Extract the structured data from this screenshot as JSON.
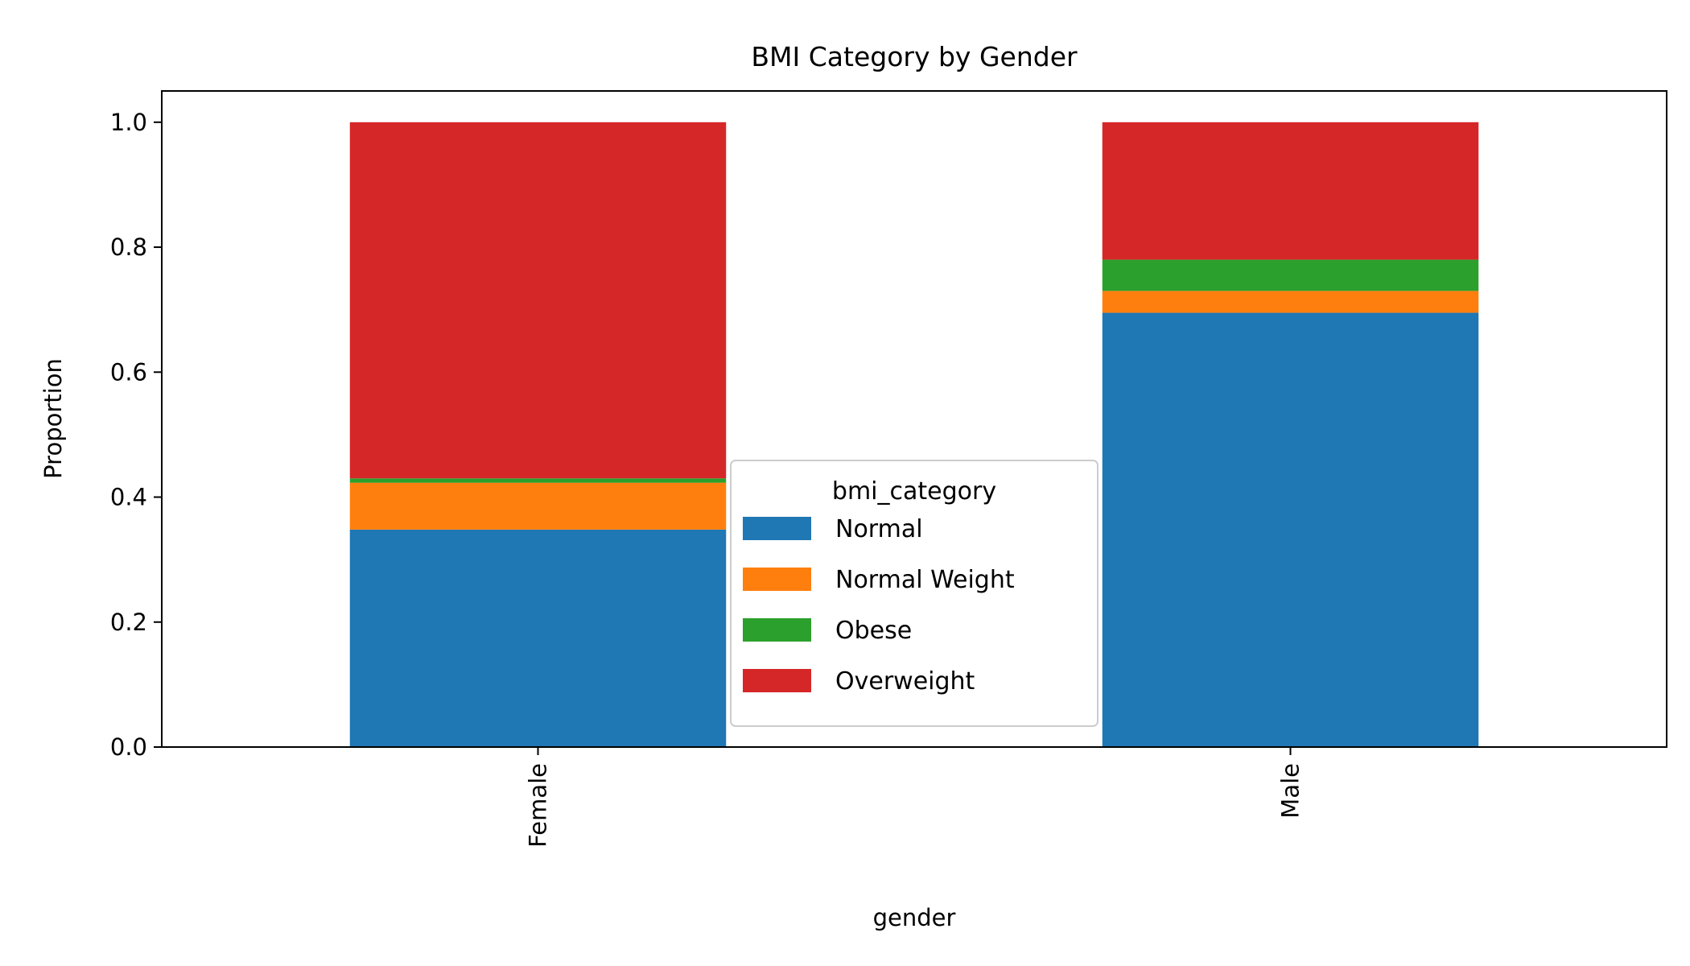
{
  "chart_data": {
    "type": "bar",
    "stacked": true,
    "title": "BMI Category by Gender",
    "xlabel": "gender",
    "ylabel": "Proportion",
    "categories": [
      "Female",
      "Male"
    ],
    "series": [
      {
        "name": "Normal",
        "color": "#1f77b4",
        "values": [
          0.348,
          0.695
        ]
      },
      {
        "name": "Normal Weight",
        "color": "#ff7f0e",
        "values": [
          0.075,
          0.035
        ]
      },
      {
        "name": "Obese",
        "color": "#2ca02c",
        "values": [
          0.007,
          0.05
        ]
      },
      {
        "name": "Overweight",
        "color": "#d62728",
        "values": [
          0.57,
          0.22
        ]
      }
    ],
    "ylim": [
      0,
      1.05
    ],
    "yticks": [
      "0.0",
      "0.2",
      "0.4",
      "0.6",
      "0.8",
      "1.0"
    ],
    "legend": {
      "title": "bmi_category",
      "placement": "bottom-center"
    },
    "grid": false
  }
}
